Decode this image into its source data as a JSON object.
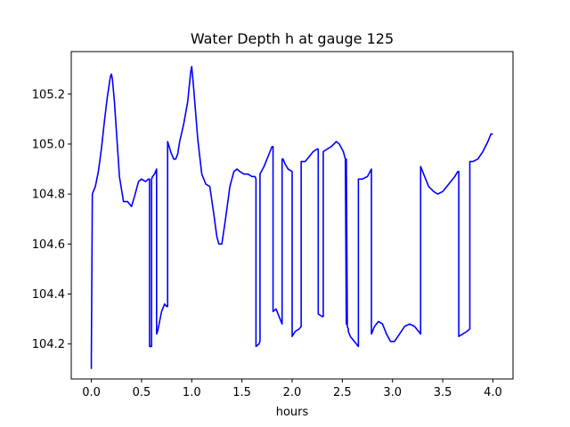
{
  "chart_data": {
    "type": "line",
    "title": "Water Depth h at gauge 125",
    "xlabel": "hours",
    "ylabel": "",
    "xlim": [
      -0.2,
      4.2
    ],
    "ylim": [
      104.06,
      105.37
    ],
    "xticks": [
      0.0,
      0.5,
      1.0,
      1.5,
      2.0,
      2.5,
      3.0,
      3.5,
      4.0
    ],
    "xtick_labels": [
      "0.0",
      "0.5",
      "1.0",
      "1.5",
      "2.0",
      "2.5",
      "3.0",
      "3.5",
      "4.0"
    ],
    "yticks": [
      104.2,
      104.4,
      104.6,
      104.8,
      105.0,
      105.2
    ],
    "ytick_labels": [
      "104.2",
      "104.4",
      "104.6",
      "104.8",
      "105.0",
      "105.2"
    ],
    "grid": false,
    "series": [
      {
        "color": "#0000ff",
        "x": [
          0.0,
          0.0,
          0.01,
          0.01,
          0.04,
          0.07,
          0.1,
          0.13,
          0.16,
          0.19,
          0.2,
          0.21,
          0.23,
          0.25,
          0.28,
          0.32,
          0.36,
          0.4,
          0.43,
          0.47,
          0.5,
          0.54,
          0.57,
          0.58,
          0.58,
          0.6,
          0.6,
          0.61,
          0.63,
          0.65,
          0.65,
          0.66,
          0.7,
          0.73,
          0.75,
          0.76,
          0.76,
          0.79,
          0.82,
          0.84,
          0.86,
          0.88,
          0.92,
          0.96,
          0.99,
          1.0,
          1.02,
          1.06,
          1.1,
          1.14,
          1.18,
          1.22,
          1.25,
          1.27,
          1.3,
          1.34,
          1.38,
          1.42,
          1.45,
          1.48,
          1.52,
          1.56,
          1.6,
          1.63,
          1.64,
          1.64,
          1.67,
          1.68,
          1.68,
          1.72,
          1.76,
          1.8,
          1.81,
          1.81,
          1.84,
          1.87,
          1.9,
          1.9,
          1.91,
          1.93,
          1.96,
          2.0,
          2.0,
          2.03,
          2.07,
          2.09,
          2.09,
          2.13,
          2.17,
          2.21,
          2.25,
          2.26,
          2.26,
          2.3,
          2.31,
          2.31,
          2.35,
          2.39,
          2.44,
          2.47,
          2.51,
          2.53,
          2.53,
          2.54,
          2.54,
          2.55,
          2.56,
          2.56,
          2.58,
          2.62,
          2.66,
          2.66,
          2.7,
          2.75,
          2.79,
          2.79,
          2.82,
          2.86,
          2.9,
          2.94,
          2.98,
          3.02,
          3.07,
          3.12,
          3.17,
          3.22,
          3.26,
          3.28,
          3.28,
          3.31,
          3.36,
          3.41,
          3.45,
          3.5,
          3.54,
          3.58,
          3.62,
          3.65,
          3.66,
          3.66,
          3.7,
          3.74,
          3.77,
          3.77,
          3.8,
          3.85,
          3.9,
          3.95,
          3.98,
          4.0
        ],
        "y": [
          104.1,
          104.14,
          104.79,
          104.8,
          104.83,
          104.89,
          104.98,
          105.09,
          105.19,
          105.27,
          105.28,
          105.26,
          105.17,
          105.05,
          104.87,
          104.77,
          104.77,
          104.75,
          104.79,
          104.85,
          104.86,
          104.85,
          104.86,
          104.86,
          104.19,
          104.19,
          104.86,
          104.87,
          104.88,
          104.9,
          104.24,
          104.25,
          104.33,
          104.36,
          104.35,
          104.35,
          105.01,
          104.97,
          104.94,
          104.94,
          104.96,
          105.01,
          105.08,
          105.17,
          105.29,
          105.31,
          105.22,
          105.02,
          104.88,
          104.84,
          104.83,
          104.72,
          104.63,
          104.6,
          104.6,
          104.71,
          104.83,
          104.89,
          104.9,
          104.89,
          104.88,
          104.88,
          104.87,
          104.87,
          104.86,
          104.19,
          104.2,
          104.21,
          104.88,
          104.91,
          104.95,
          104.99,
          104.99,
          104.33,
          104.34,
          104.31,
          104.28,
          104.94,
          104.94,
          104.92,
          104.9,
          104.89,
          104.23,
          104.25,
          104.26,
          104.27,
          104.93,
          104.93,
          104.95,
          104.97,
          104.98,
          104.98,
          104.32,
          104.31,
          104.31,
          104.97,
          104.98,
          104.99,
          105.01,
          105.0,
          104.97,
          104.94,
          104.94,
          104.28,
          104.94,
          104.27,
          104.26,
          104.25,
          104.23,
          104.21,
          104.19,
          104.86,
          104.86,
          104.87,
          104.9,
          104.24,
          104.27,
          104.29,
          104.28,
          104.24,
          104.21,
          104.21,
          104.24,
          104.27,
          104.28,
          104.27,
          104.25,
          104.24,
          104.91,
          104.88,
          104.83,
          104.81,
          104.8,
          104.81,
          104.83,
          104.85,
          104.87,
          104.89,
          104.89,
          104.23,
          104.24,
          104.25,
          104.26,
          104.93,
          104.93,
          104.94,
          104.97,
          105.01,
          105.04,
          105.04
        ]
      }
    ]
  }
}
